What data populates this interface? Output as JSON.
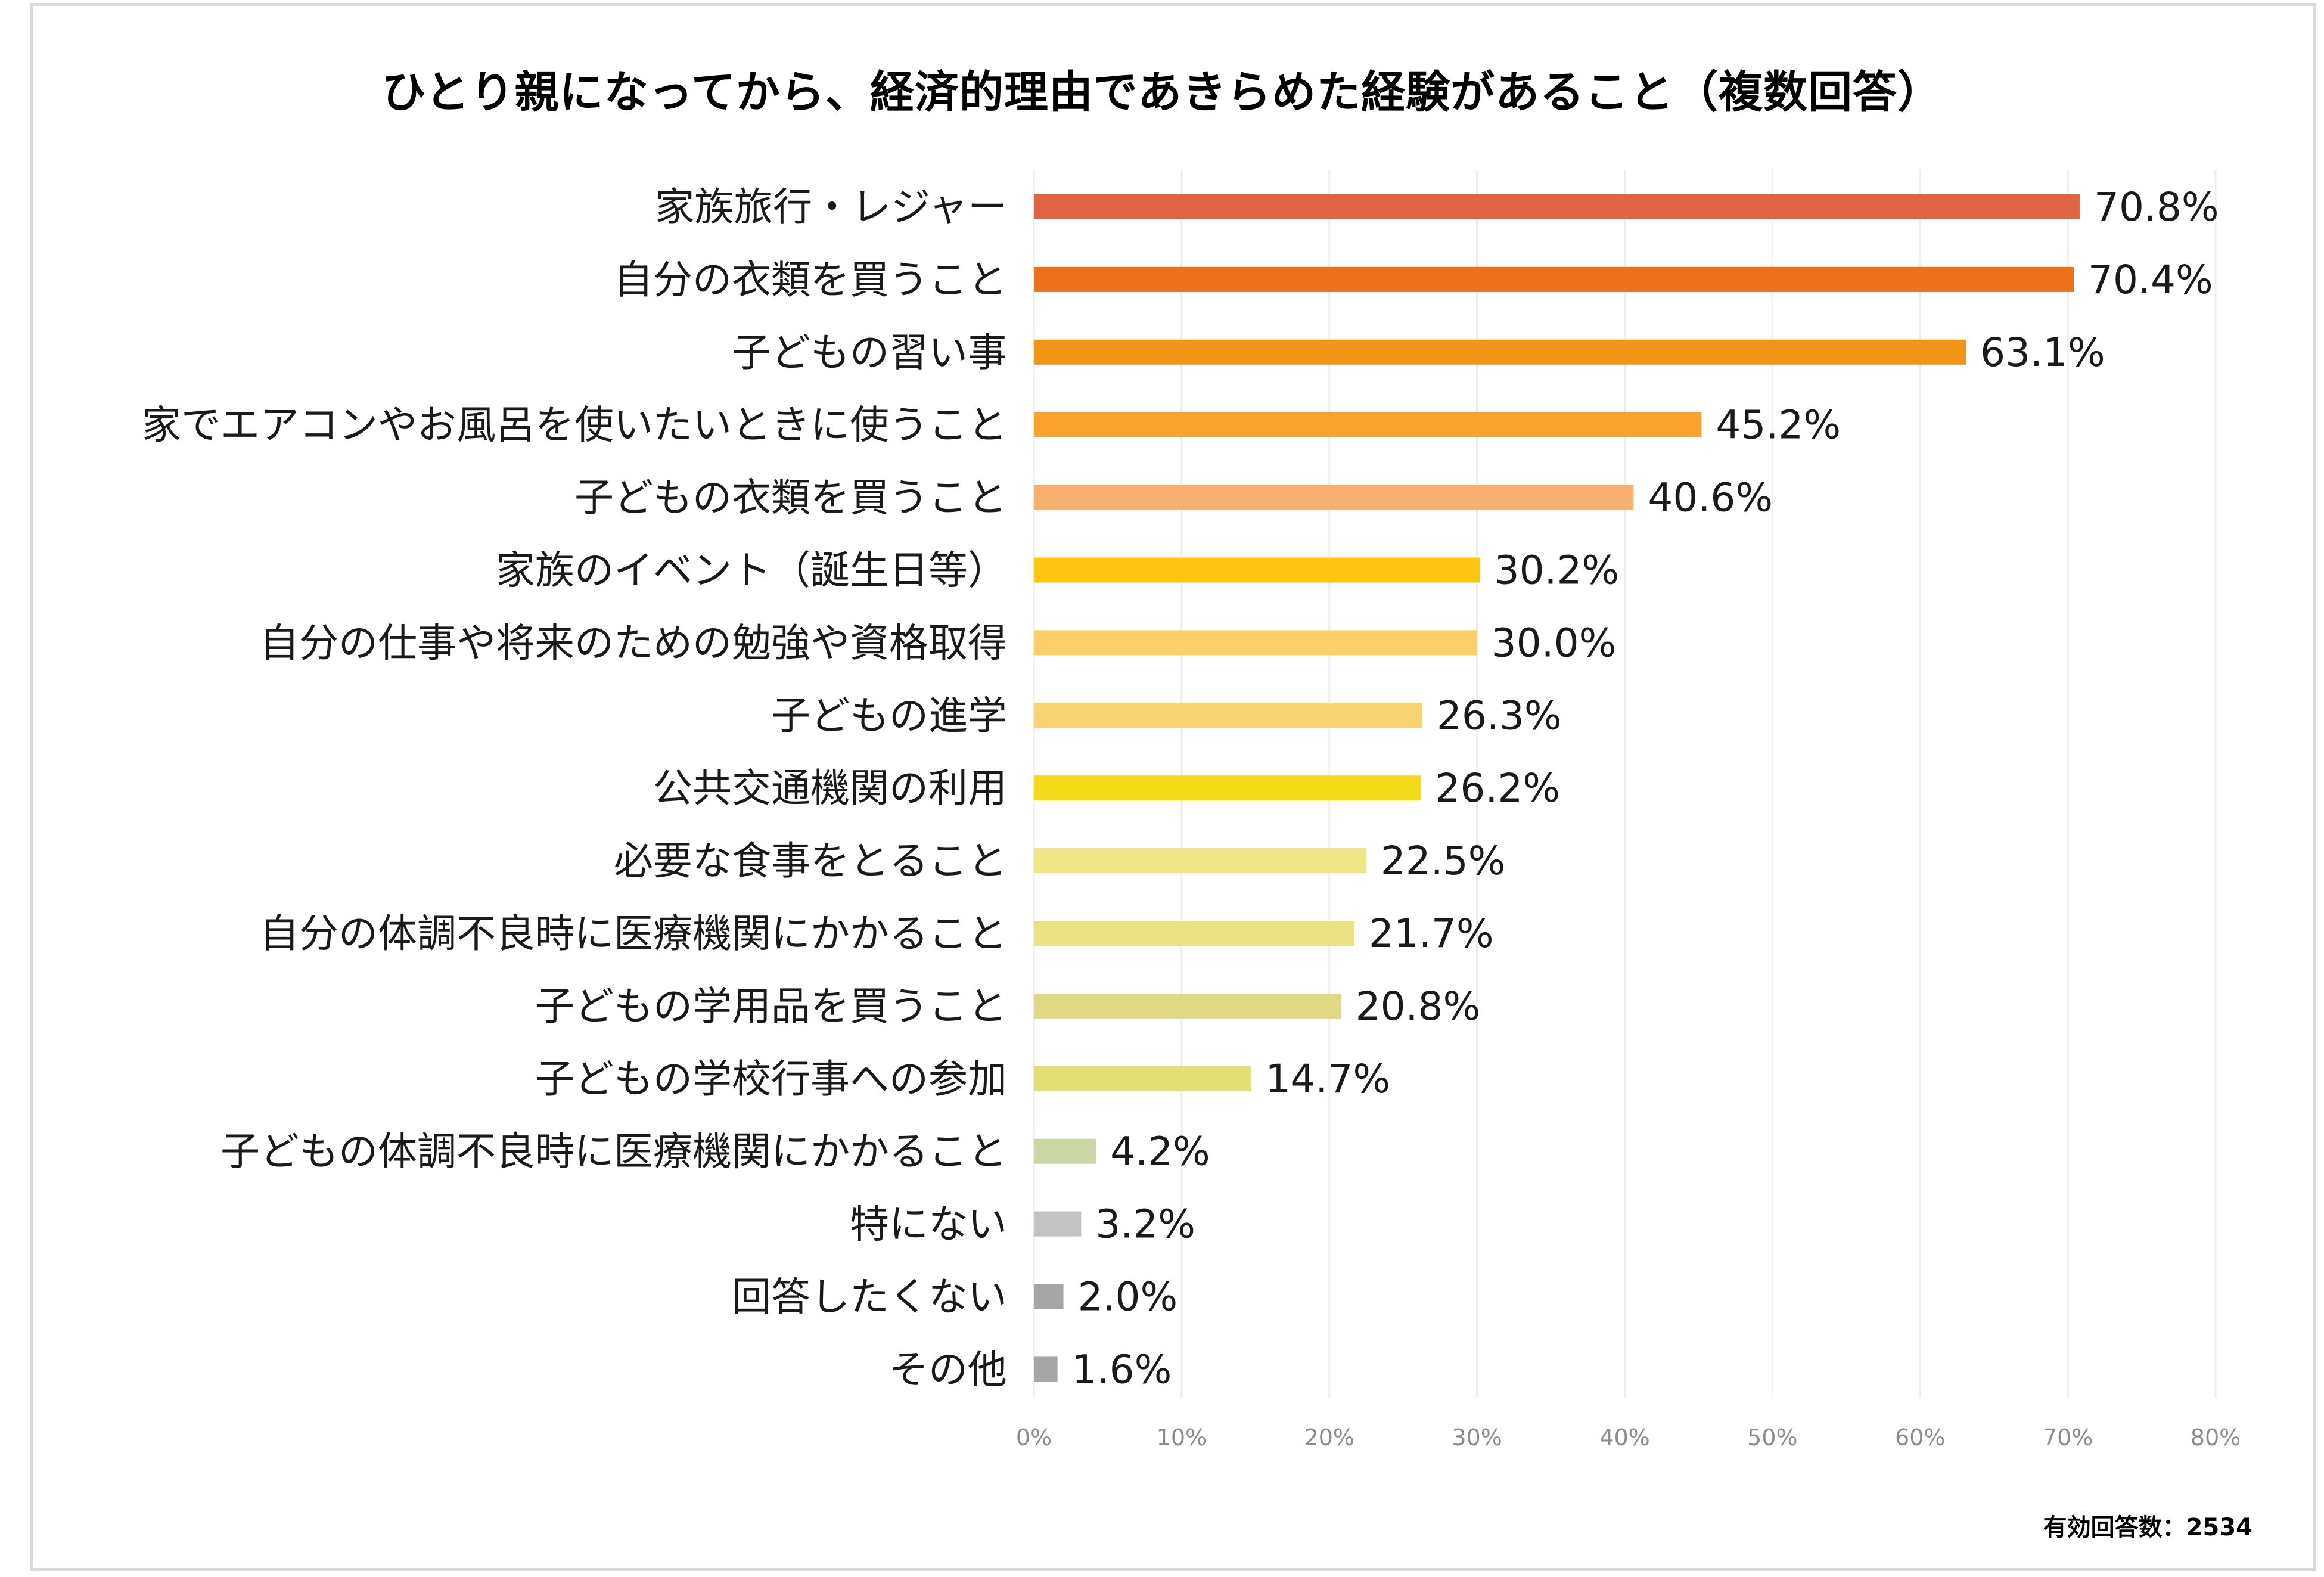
{
  "chart_data": {
    "type": "bar",
    "orientation": "horizontal",
    "title": "ひとり親になってから、経済的理由であきらめた経験があること（複数回答）",
    "footnote": "有効回答数：2534",
    "xlim": [
      0,
      80
    ],
    "x_ticks": [
      "0%",
      "10%",
      "20%",
      "30%",
      "40%",
      "50%",
      "60%",
      "70%",
      "80%"
    ],
    "grid": true,
    "categories": [
      "家族旅行・レジャー",
      "自分の衣類を買うこと",
      "子どもの習い事",
      "家でエアコンやお風呂を使いたいときに使うこと",
      "子どもの衣類を買うこと",
      "家族のイベント（誕生日等）",
      "自分の仕事や将来のための勉強や資格取得",
      "子どもの進学",
      "公共交通機関の利用",
      "必要な食事をとること",
      "自分の体調不良時に医療機関にかかること",
      "子どもの学用品を買うこと",
      "子どもの学校行事への参加",
      "子どもの体調不良時に医療機関にかかること",
      "特にない",
      "回答したくない",
      "その他"
    ],
    "values": [
      70.8,
      70.4,
      63.1,
      45.2,
      40.6,
      30.2,
      30.0,
      26.3,
      26.2,
      22.5,
      21.7,
      20.8,
      14.7,
      4.2,
      3.2,
      2.0,
      1.6
    ],
    "value_labels": [
      "70.8%",
      "70.4%",
      "63.1%",
      "45.2%",
      "40.6%",
      "30.2%",
      "30.0%",
      "26.3%",
      "26.2%",
      "22.5%",
      "21.7%",
      "20.8%",
      "14.7%",
      "4.2%",
      "3.2%",
      "2.0%",
      "1.6%"
    ],
    "colors": [
      "#e06442",
      "#ec7119",
      "#f29416",
      "#f9a22e",
      "#f7b06e",
      "#fdc50d",
      "#fcd067",
      "#f8d470",
      "#f3da19",
      "#eee784",
      "#e9e383",
      "#dfd985",
      "#e2e070",
      "#cbd6a7",
      "#c3c3c3",
      "#a6a6a6",
      "#a6a6a6"
    ],
    "grid_color": "#eeeeee"
  }
}
